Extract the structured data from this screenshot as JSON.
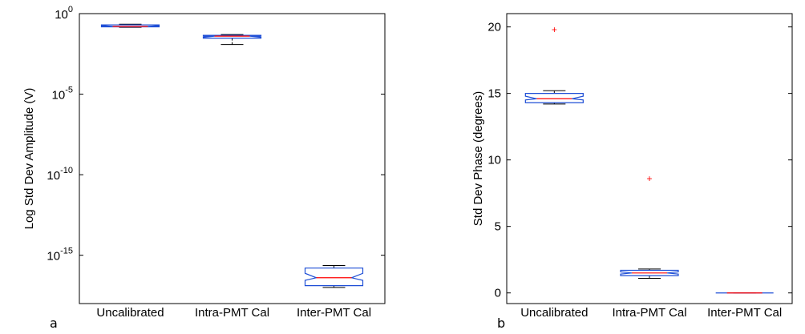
{
  "panel_labels": [
    "a",
    "b"
  ],
  "chart_data": [
    {
      "type": "boxplot",
      "panel": "a",
      "ylabel": "Log Std Dev Amplitude (V)",
      "xlabel": "",
      "yscale": "log",
      "ylim": [
        1e-18,
        1
      ],
      "yticks": [
        {
          "value": 1,
          "base": "10",
          "exp": "0"
        },
        {
          "value": 1e-05,
          "base": "10",
          "exp": "-5"
        },
        {
          "value": 1e-10,
          "base": "10",
          "exp": "-10"
        },
        {
          "value": 1e-15,
          "base": "10",
          "exp": "-15"
        }
      ],
      "categories": [
        "Uncalibrated",
        "Intra-PMT Cal",
        "Inter-PMT Cal"
      ],
      "boxes": [
        {
          "whisker_low": 0.14,
          "q1": 0.15,
          "median": 0.16,
          "q3": 0.2,
          "whisker_high": 0.22,
          "outliers": []
        },
        {
          "whisker_low": 0.012,
          "q1": 0.03,
          "median": 0.04,
          "q3": 0.045,
          "whisker_high": 0.05,
          "outliers": []
        },
        {
          "whisker_low": 1e-17,
          "q1": 1.3e-17,
          "median": 4e-17,
          "q3": 1.6e-16,
          "whisker_high": 2.3e-16,
          "outliers": []
        }
      ],
      "colors": {
        "box": "#1f4fd6",
        "median": "#ff0000",
        "whisker": "#000000",
        "outlier": "#ff0000"
      },
      "grid": false
    },
    {
      "type": "boxplot",
      "panel": "b",
      "ylabel": "Std Dev Phase (degrees)",
      "xlabel": "",
      "yscale": "linear",
      "ylim": [
        -0.8,
        21
      ],
      "yticks": [
        0,
        5,
        10,
        15,
        20
      ],
      "categories": [
        "Uncalibrated",
        "Intra-PMT Cal",
        "Inter-PMT Cal"
      ],
      "boxes": [
        {
          "whisker_low": 14.2,
          "q1": 14.3,
          "median": 14.6,
          "q3": 15.0,
          "whisker_high": 15.2,
          "outliers": [
            19.8
          ]
        },
        {
          "whisker_low": 1.1,
          "q1": 1.3,
          "median": 1.5,
          "q3": 1.7,
          "whisker_high": 1.8,
          "outliers": [
            8.6
          ]
        },
        {
          "whisker_low": 0,
          "q1": 0,
          "median": 0,
          "q3": 0,
          "whisker_high": 0,
          "outliers": []
        }
      ],
      "colors": {
        "box": "#1f4fd6",
        "median": "#ff0000",
        "whisker": "#000000",
        "outlier": "#ff0000"
      },
      "grid": false
    }
  ]
}
